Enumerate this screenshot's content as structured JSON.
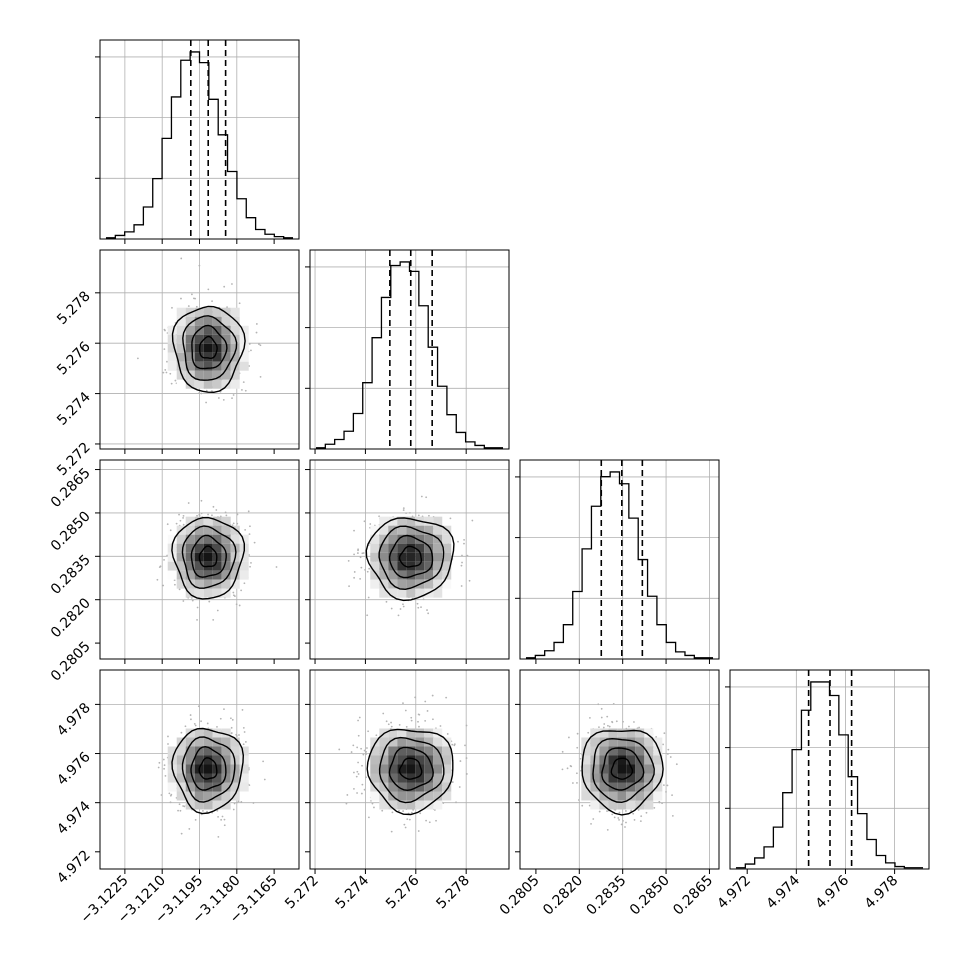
{
  "figure": {
    "type": "corner-plot",
    "dimensions": 4
  },
  "colors": {
    "frame": "#000000",
    "grid": "#b0b0b0",
    "hist": "#000000",
    "quantile": "#000000",
    "contour": "#000000",
    "scatter": "#b4b4b4"
  },
  "chart_data": {
    "type": "corner",
    "params": [
      {
        "lim": [
          -3.1235,
          -3.1155
        ],
        "ticks": [
          -3.1225,
          -3.121,
          -3.1195,
          -3.118,
          -3.1165
        ],
        "tick_labels": [
          "−3.1225",
          "−3.1210",
          "−3.1195",
          "−3.1180",
          "−3.1165"
        ],
        "hist_grid": [
          -3.1225,
          -3.121,
          -3.1195,
          -3.118
        ],
        "median": -3.11915,
        "quantiles": [
          -3.11985,
          -3.11915,
          -3.11845
        ],
        "sigma": 0.0007
      },
      {
        "lim": [
          5.2718,
          5.2797
        ],
        "ticks": [
          5.272,
          5.274,
          5.276,
          5.278
        ],
        "tick_labels": [
          "5.272",
          "5.274",
          "5.276",
          "5.278"
        ],
        "hist_grid": [
          5.272,
          5.274,
          5.276,
          5.278
        ],
        "median": 5.2758,
        "quantiles": [
          5.27497,
          5.2758,
          5.27665
        ],
        "sigma": 0.00085
      },
      {
        "lim": [
          0.27995,
          0.28683
        ],
        "ticks": [
          0.2805,
          0.282,
          0.2835,
          0.285,
          0.2865
        ],
        "tick_labels": [
          "0.2805",
          "0.2820",
          "0.2835",
          "0.2850",
          "0.2865"
        ],
        "hist_grid": [
          0.282,
          0.2835,
          0.285,
          0.2865
        ],
        "median": 0.28347,
        "quantiles": [
          0.28276,
          0.28347,
          0.28418
        ],
        "sigma": 0.0007
      },
      {
        "lim": [
          4.9713,
          4.9794
        ],
        "ticks": [
          4.972,
          4.974,
          4.976,
          4.978
        ],
        "tick_labels": [
          "4.972",
          "4.974",
          "4.976",
          "4.978"
        ],
        "hist_grid": [
          4.974,
          4.976,
          4.978
        ],
        "median": 4.97537,
        "quantiles": [
          4.9745,
          4.97537,
          4.97625
        ],
        "sigma": 0.00085
      }
    ],
    "histograms": [
      [
        1,
        3,
        6,
        12,
        27,
        51,
        85,
        120,
        151,
        158,
        149,
        118,
        88,
        57,
        34,
        18,
        8,
        4,
        2,
        1
      ],
      [
        1,
        4,
        8,
        15,
        30,
        56,
        94,
        128,
        155,
        158,
        150,
        121,
        86,
        53,
        29,
        14,
        6,
        3,
        1,
        1
      ],
      [
        1,
        3,
        7,
        14,
        29,
        57,
        93,
        129,
        154,
        158,
        148,
        119,
        84,
        53,
        29,
        14,
        6,
        3,
        1,
        1
      ],
      [
        1,
        4,
        9,
        18,
        34,
        62,
        97,
        129,
        152,
        152,
        141,
        109,
        75,
        45,
        24,
        11,
        5,
        2,
        1,
        1
      ]
    ],
    "contour_levels_sigma": [
      0.5,
      1.0,
      1.5,
      2.0
    ],
    "grid": true
  }
}
